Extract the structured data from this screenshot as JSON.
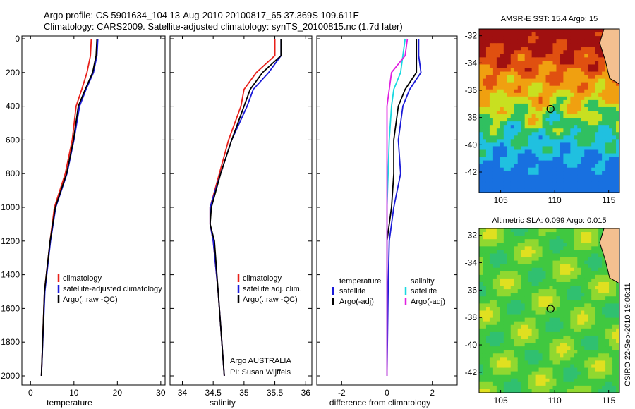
{
  "header": {
    "line1": "Argo profile: CS 5901634_104 13-Aug-2010 20100817_65 37.369S 109.611E",
    "line2": "Climatology: CARS2009. Satellite-adjusted climatology: synTS_20100815.nc (1.7d later)"
  },
  "credits": {
    "source": "Argo AUSTRALIA",
    "pi": "PI: Susan Wijffels",
    "stamp": "CSIRO 22-Sep-2010 19:06:11"
  },
  "chart_data": [
    {
      "type": "line",
      "id": "temperature",
      "xlabel": "temperature",
      "ylabel": "",
      "xlim": [
        -2,
        31
      ],
      "ylim": [
        2050,
        0
      ],
      "xticks": [
        "0",
        "10",
        "20",
        "30"
      ],
      "yticks": [
        "0",
        "200",
        "400",
        "600",
        "800",
        "1000",
        "1200",
        "1400",
        "1600",
        "1800",
        "2000"
      ],
      "legend_position": "lower-right",
      "colors": {
        "climatology": "#e8201a",
        "satellite": "#1a1ad8",
        "argo": "#000000"
      },
      "series": [
        {
          "name": "climatology",
          "color": "#e8201a",
          "depth": [
            0,
            100,
            200,
            300,
            400,
            600,
            800,
            1000,
            1200,
            1500,
            2000
          ],
          "values": [
            14.0,
            13.8,
            13.0,
            11.8,
            10.5,
            9.6,
            8.0,
            5.5,
            4.5,
            3.2,
            2.5
          ]
        },
        {
          "name": "satellite-adjusted climatology",
          "color": "#1a1ad8",
          "depth": [
            0,
            100,
            200,
            300,
            400,
            600,
            800,
            1000,
            1200,
            1500,
            2000
          ],
          "values": [
            15.5,
            15.3,
            14.5,
            12.8,
            11.3,
            10.0,
            8.4,
            5.8,
            4.6,
            3.3,
            2.5
          ]
        },
        {
          "name": "Argo(..raw -QC)",
          "color": "#000000",
          "depth": [
            0,
            100,
            200,
            300,
            400,
            600,
            800,
            1000,
            1200,
            1500,
            2000
          ],
          "values": [
            15.3,
            15.1,
            14.3,
            12.6,
            11.0,
            9.9,
            8.3,
            5.7,
            4.5,
            3.2,
            2.5
          ]
        }
      ]
    },
    {
      "type": "line",
      "id": "salinity",
      "xlabel": "salinity",
      "ylabel": "",
      "xlim": [
        33.8,
        36.1
      ],
      "ylim": [
        2050,
        0
      ],
      "xticks": [
        "34",
        "34.5",
        "35",
        "35.5",
        "36"
      ],
      "legend_position": "lower-right",
      "series": [
        {
          "name": "climatology",
          "color": "#e8201a",
          "depth": [
            0,
            100,
            200,
            300,
            400,
            600,
            800,
            1000,
            1100,
            1200,
            1500,
            2000
          ],
          "values": [
            35.5,
            35.5,
            35.2,
            35.0,
            34.95,
            34.75,
            34.6,
            34.45,
            34.45,
            34.5,
            34.58,
            34.68
          ]
        },
        {
          "name": "satellite adj. clim.",
          "color": "#1a1ad8",
          "depth": [
            0,
            100,
            200,
            300,
            400,
            600,
            800,
            1000,
            1100,
            1200,
            1500,
            2000
          ],
          "values": [
            35.6,
            35.6,
            35.4,
            35.15,
            35.05,
            34.8,
            34.62,
            34.45,
            34.45,
            34.5,
            34.58,
            34.68
          ]
        },
        {
          "name": "Argo(..raw -QC)",
          "color": "#000000",
          "depth": [
            0,
            100,
            200,
            300,
            400,
            600,
            800,
            1000,
            1100,
            1200,
            1500,
            2000
          ],
          "values": [
            35.6,
            35.6,
            35.3,
            35.1,
            35.0,
            34.8,
            34.62,
            34.47,
            34.45,
            34.52,
            34.58,
            34.68
          ]
        }
      ]
    },
    {
      "type": "line",
      "id": "difference",
      "xlabel": "difference from climatology",
      "ylabel": "",
      "xlim": [
        -3.1,
        3.1
      ],
      "ylim": [
        2050,
        0
      ],
      "xticks": [
        "-2",
        "0",
        "2"
      ],
      "legend": {
        "left_title": "temperature",
        "right_title": "salinity",
        "left_items": [
          "satellite",
          "Argo(-adj)"
        ],
        "right_items": [
          "satellite",
          "Argo(-adj)"
        ]
      },
      "series": [
        {
          "name": "temperature satellite",
          "color": "#1a1ad8",
          "depth": [
            0,
            100,
            200,
            300,
            400,
            600,
            800,
            1000,
            1200,
            1500,
            2000
          ],
          "values": [
            1.4,
            1.4,
            1.5,
            1.0,
            0.7,
            0.5,
            0.6,
            0.3,
            0.1,
            0.05,
            0.0
          ]
        },
        {
          "name": "temperature Argo(-adj)",
          "color": "#000000",
          "depth": [
            0,
            100,
            200,
            300,
            400,
            600,
            800,
            1000,
            1200,
            1500,
            2000
          ],
          "values": [
            1.3,
            1.3,
            1.3,
            0.8,
            0.5,
            0.3,
            0.3,
            0.2,
            0.0,
            0.0,
            0.0
          ]
        },
        {
          "name": "salinity satellite",
          "color": "#18d8e0",
          "depth": [
            0,
            100,
            200,
            300,
            400,
            600,
            800,
            1000,
            1200,
            1500,
            2000
          ],
          "values": [
            0.8,
            0.7,
            0.6,
            0.3,
            0.2,
            0.1,
            0.05,
            0.0,
            0.0,
            0.0,
            0.0
          ]
        },
        {
          "name": "salinity Argo(-adj)",
          "color": "#e020e0",
          "depth": [
            0,
            100,
            200,
            300,
            400,
            600,
            800,
            1000,
            1200,
            1500,
            2000
          ],
          "values": [
            0.9,
            0.8,
            0.2,
            0.1,
            0.0,
            0.0,
            0.0,
            0.0,
            0.0,
            0.0,
            0.0
          ]
        }
      ]
    },
    {
      "type": "heatmap",
      "id": "sst",
      "title": "AMSR-E SST: 15.4 Argo: 15",
      "xlim": [
        103,
        116
      ],
      "ylim": [
        -43.5,
        -31.5
      ],
      "xticks": [
        "105",
        "110",
        "115"
      ],
      "yticks": [
        "-32",
        "-34",
        "-36",
        "-38",
        "-40",
        "-42"
      ],
      "marker": {
        "lon": 109.611,
        "lat": -37.369
      },
      "colors": {
        "warm": "#a01010",
        "cool": "#1030a0"
      }
    },
    {
      "type": "heatmap",
      "id": "sla",
      "title": "Altimetric SLA: 0.099 Argo: 0.015",
      "xlim": [
        103,
        116
      ],
      "ylim": [
        -43.5,
        -31.5
      ],
      "xticks": [
        "105",
        "110",
        "115"
      ],
      "yticks": [
        "-32",
        "-34",
        "-36",
        "-38",
        "-40",
        "-42"
      ],
      "marker": {
        "lon": 109.611,
        "lat": -37.369
      },
      "colors": {
        "base": "#3cc83c",
        "high": "#e0e020",
        "low": "#30b0a0"
      }
    }
  ]
}
